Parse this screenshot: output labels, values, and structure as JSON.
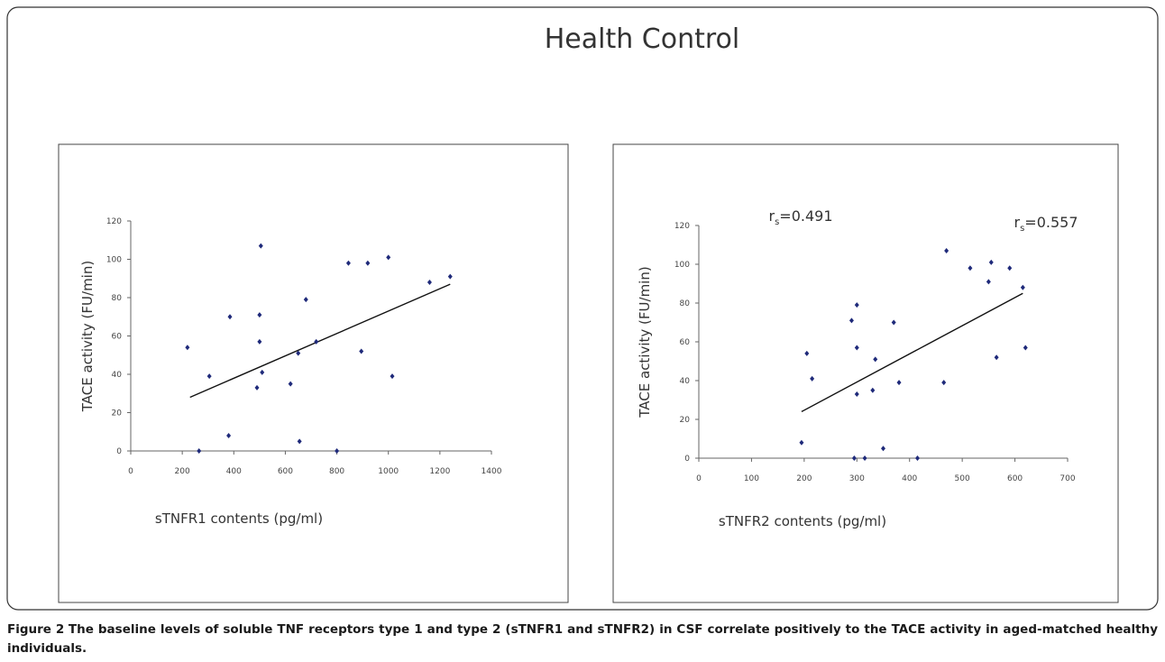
{
  "title": "Health Control",
  "chart_data": [
    {
      "type": "scatter",
      "color": "#1f2a7a",
      "ylabel": "TACE activity (FU/min)",
      "xlabel": "sTNFR1 contents (pg/ml)",
      "annotation": {
        "symbol": "r",
        "subscript": "s",
        "text": "=0.491"
      },
      "xlim": [
        0,
        1400
      ],
      "xticks": [
        0,
        200,
        400,
        600,
        800,
        1000,
        1200,
        1400
      ],
      "ylim": [
        0,
        120
      ],
      "yticks": [
        0,
        20,
        40,
        60,
        80,
        100,
        120
      ],
      "x": [
        220,
        265,
        305,
        380,
        385,
        490,
        500,
        500,
        505,
        510,
        620,
        650,
        655,
        680,
        720,
        800,
        845,
        895,
        920,
        1000,
        1015,
        1160,
        1240
      ],
      "y": [
        54,
        0,
        39,
        8,
        70,
        33,
        71,
        57,
        107,
        41,
        35,
        51,
        5,
        79,
        57,
        0,
        98,
        52,
        98,
        101,
        39,
        88,
        91
      ],
      "trendline": {
        "x": [
          230,
          1240
        ],
        "y": [
          28,
          87
        ]
      }
    },
    {
      "type": "scatter",
      "color": "#1f2a7a",
      "ylabel": "TACE activity (FU/min)",
      "xlabel": "sTNFR2 contents (pg/ml)",
      "annotation": {
        "symbol": "r",
        "subscript": "s",
        "text": "=0.557"
      },
      "xlim": [
        0,
        700
      ],
      "xticks": [
        0,
        100,
        200,
        300,
        400,
        500,
        600,
        700
      ],
      "ylim": [
        0,
        120
      ],
      "yticks": [
        0,
        20,
        40,
        60,
        80,
        100,
        120
      ],
      "x": [
        195,
        205,
        215,
        290,
        295,
        300,
        300,
        300,
        315,
        330,
        335,
        350,
        370,
        380,
        415,
        465,
        470,
        515,
        550,
        555,
        565,
        590,
        615,
        620
      ],
      "y": [
        8,
        54,
        41,
        71,
        0,
        79,
        57,
        33,
        0,
        35,
        51,
        5,
        70,
        39,
        0,
        39,
        107,
        98,
        91,
        101,
        52,
        98,
        88,
        57
      ],
      "trendline": {
        "x": [
          195,
          615
        ],
        "y": [
          24,
          85
        ]
      }
    }
  ],
  "caption_label": "Figure 2",
  "caption": "The baseline levels of soluble TNF receptors type 1 and type 2 (sTNFR1 and sTNFR2) in CSF correlate positively to the TACE activity in aged-matched healthy individuals."
}
